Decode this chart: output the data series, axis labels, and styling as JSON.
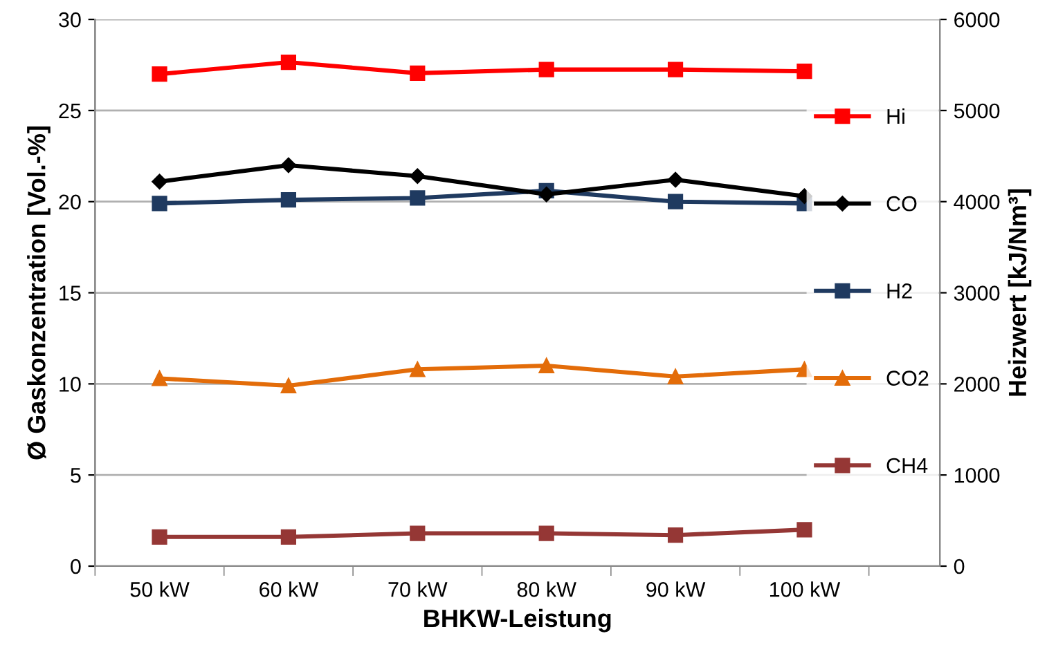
{
  "chart_data": {
    "type": "line",
    "xlabel": "BHKW-Leistung",
    "ylabel": "Ø Gaskonzentration [Vol.-%]",
    "y2label": "Heizwert [kJ/Nm³]",
    "categories": [
      "50 kW",
      "60 kW",
      "70 kW",
      "80 kW",
      "90 kW",
      "100 kW"
    ],
    "series": [
      {
        "name": "Hi",
        "color": "#ff0000",
        "marker": "square",
        "axis": "y2",
        "values": [
          5400,
          5530,
          5410,
          5450,
          5450,
          5430
        ]
      },
      {
        "name": "CO",
        "color": "#000000",
        "marker": "diamond",
        "values": [
          21.1,
          22.0,
          21.4,
          20.4,
          21.2,
          20.3
        ]
      },
      {
        "name": "H2",
        "color": "#1f3a60",
        "marker": "square",
        "values": [
          19.9,
          20.1,
          20.2,
          20.6,
          20.0,
          19.9
        ]
      },
      {
        "name": "CO2",
        "color": "#e36c09",
        "marker": "triangle",
        "values": [
          10.3,
          9.9,
          10.8,
          11.0,
          10.4,
          10.8
        ]
      },
      {
        "name": "CH4",
        "color": "#953735",
        "marker": "square",
        "values": [
          1.6,
          1.6,
          1.8,
          1.8,
          1.7,
          2.0
        ]
      }
    ],
    "ylim": [
      0,
      30
    ],
    "yticks": [
      0,
      5,
      10,
      15,
      20,
      25,
      30
    ],
    "y2lim": [
      0,
      6000
    ],
    "y2ticks": [
      0,
      1000,
      2000,
      3000,
      4000,
      5000,
      6000
    ],
    "grid": "y",
    "legend": "right",
    "line_style": "solid"
  }
}
